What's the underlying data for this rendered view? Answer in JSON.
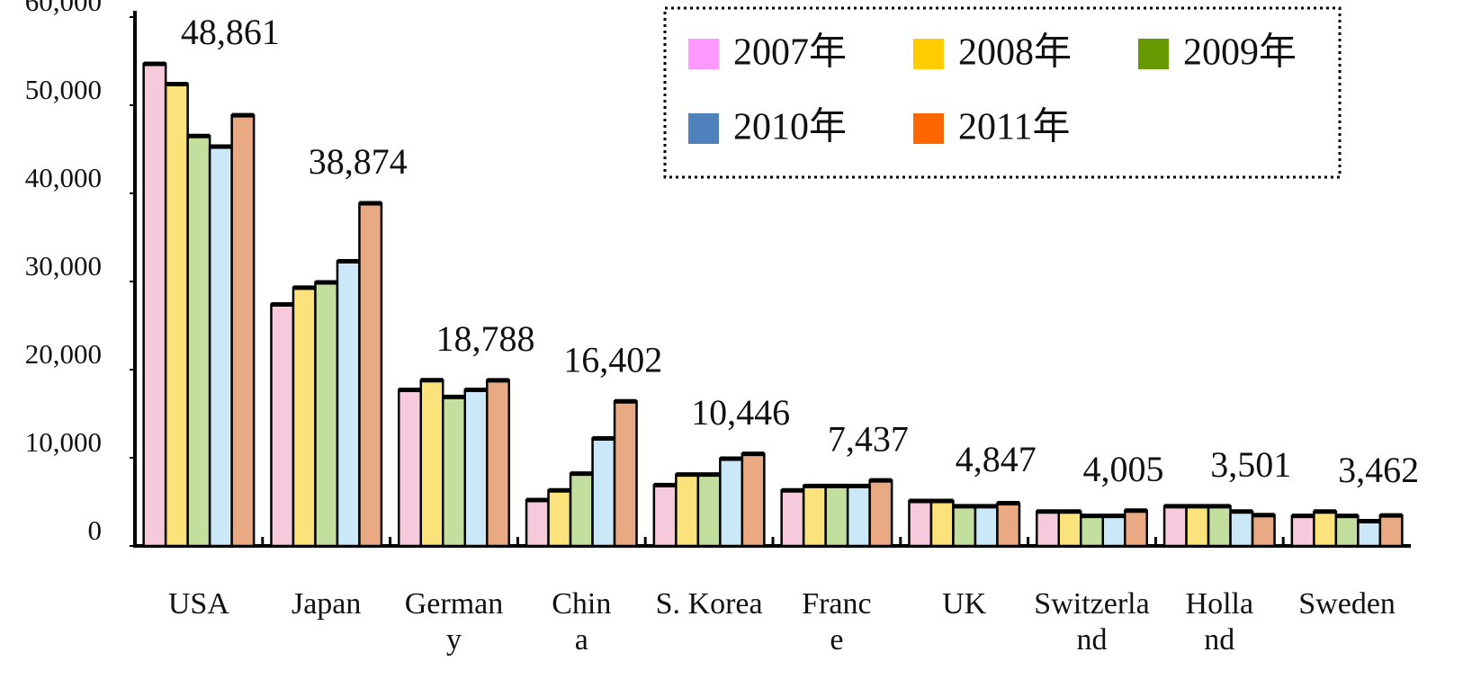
{
  "chart_data": {
    "type": "bar",
    "categories": [
      "USA",
      "Japan",
      "German\ny",
      "Chin\na",
      "S. Korea",
      "Franc\ne",
      "UK",
      "Switzerla\nnd",
      "Holla\nnd",
      "Sweden"
    ],
    "series": [
      {
        "name": "2007年",
        "color": "#f7c9dc",
        "swatch_color": "#ff99ff",
        "values": [
          54700,
          27400,
          17700,
          5200,
          6900,
          6300,
          5100,
          3900,
          4500,
          3400
        ]
      },
      {
        "name": "2008年",
        "color": "#fbe27a",
        "swatch_color": "#ffcc00",
        "values": [
          52400,
          29300,
          18800,
          6300,
          8100,
          6800,
          5100,
          3900,
          4500,
          3900
        ]
      },
      {
        "name": "2009年",
        "color": "#c3df9e",
        "swatch_color": "#669900",
        "values": [
          46500,
          29900,
          16900,
          8200,
          8100,
          6800,
          4500,
          3400,
          4500,
          3400
        ]
      },
      {
        "name": "2010年",
        "color": "#cbe8f8",
        "swatch_color": "#4f81bd",
        "values": [
          45300,
          32300,
          17700,
          12200,
          9900,
          6800,
          4500,
          3400,
          3900,
          2800
        ]
      },
      {
        "name": "2011年",
        "color": "#e9a982",
        "swatch_color": "#ff6600",
        "values": [
          48861,
          38874,
          18788,
          16402,
          10446,
          7437,
          4847,
          4005,
          3501,
          3462
        ],
        "value_labels": [
          "48,861",
          "38,874",
          "18,788",
          "16,402",
          "10,446",
          "7,437",
          "4,847",
          "4,005",
          "3,501",
          "3,462"
        ]
      }
    ],
    "ylim": [
      0,
      60000
    ],
    "yticks": [
      {
        "value": 0,
        "label": "0"
      },
      {
        "value": 10000,
        "label": "10,000"
      },
      {
        "value": 20000,
        "label": "20,000"
      },
      {
        "value": 30000,
        "label": "30,000"
      },
      {
        "value": 40000,
        "label": "40,000"
      },
      {
        "value": 50000,
        "label": "50,000"
      },
      {
        "value": 60000,
        "label": "60,000"
      }
    ],
    "legend": "top-right"
  }
}
